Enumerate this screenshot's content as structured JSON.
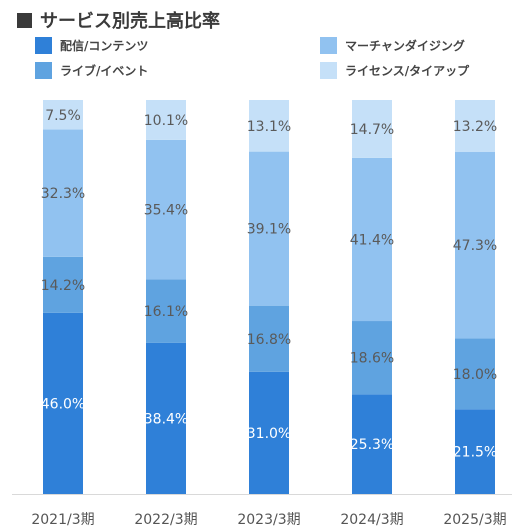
{
  "title": "サービス別売上高比率",
  "colors": {
    "title_square": "#3a3a3a",
    "axis": "#d9d9d9"
  },
  "chart_data": {
    "type": "bar",
    "stacked": true,
    "title": "サービス別売上高比率",
    "categories": [
      "2021/3期",
      "2022/3期",
      "2023/3期",
      "2024/3期",
      "2025/3期"
    ],
    "ylim": [
      0,
      100
    ],
    "grid": false,
    "legend_position": "top",
    "series": [
      {
        "name": "配信/コンテンツ",
        "color": "#2f80d8",
        "labels_white": true,
        "values": [
          46.0,
          38.4,
          31.0,
          25.3,
          21.5
        ],
        "labels": [
          "46.0%",
          "38.4%",
          "31.0%",
          "25.3%",
          "21.5%"
        ]
      },
      {
        "name": "ライブ/イベント",
        "color": "#5fa3e0",
        "labels_white": false,
        "values": [
          14.2,
          16.1,
          16.8,
          18.6,
          18.0
        ],
        "labels": [
          "14.2%",
          "16.1%",
          "16.8%",
          "18.6%",
          "18.0%"
        ]
      },
      {
        "name": "マーチャンダイジング",
        "color": "#91c2f0",
        "labels_white": false,
        "values": [
          32.3,
          35.4,
          39.1,
          41.4,
          47.3
        ],
        "labels": [
          "32.3%",
          "35.4%",
          "39.1%",
          "41.4%",
          "47.3%"
        ]
      },
      {
        "name": "ライセンス/タイアップ",
        "color": "#c5e0f8",
        "labels_white": false,
        "values": [
          7.5,
          10.1,
          13.1,
          14.7,
          13.2
        ],
        "labels": [
          "7.5%",
          "10.1%",
          "13.1%",
          "14.7%",
          "13.2%"
        ]
      }
    ]
  }
}
